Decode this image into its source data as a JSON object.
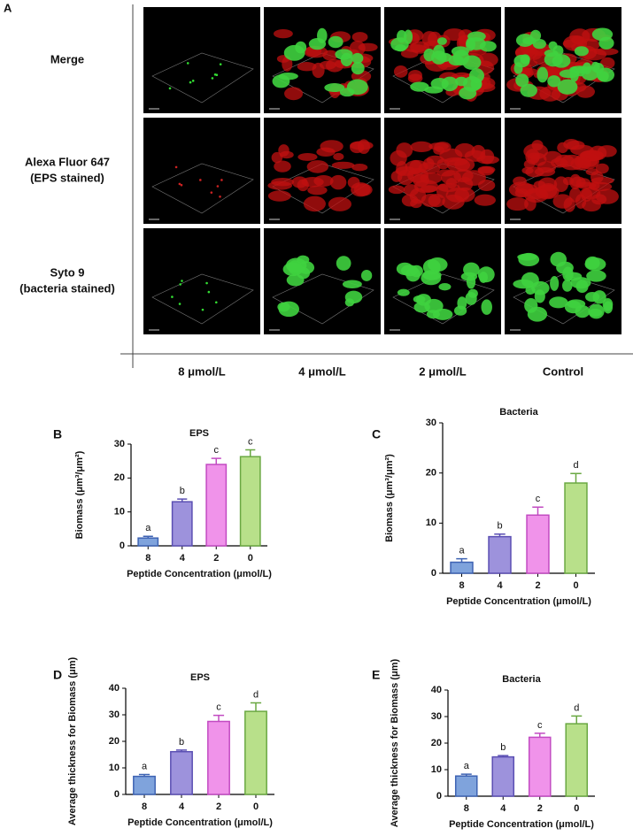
{
  "panel_a": {
    "label": "A",
    "rows": [
      [
        "Merge"
      ],
      [
        "Alexa Fluor 647",
        "(EPS stained)"
      ],
      [
        "Syto 9",
        "(bacteria stained)"
      ]
    ],
    "columns": [
      "8 μmol/L",
      "4 μmol/L",
      "2 μmol/L",
      "Control"
    ]
  },
  "chart_data": [
    {
      "type": "bar",
      "panel": "B",
      "title": "EPS",
      "ylabel": "Biomass (μm³/μm²)",
      "xlabel": "Peptide Concentration (μmol/L)",
      "categories": [
        "8",
        "4",
        "2",
        "0"
      ],
      "values": [
        2.3,
        13,
        24,
        26.3
      ],
      "errors": [
        0.5,
        0.8,
        1.8,
        2.0
      ],
      "annotations": [
        "a",
        "b",
        "c",
        "c"
      ],
      "colors": [
        "#7fa3dc",
        "#9d92dc",
        "#f093ea",
        "#b8e08a"
      ],
      "edge_colors": [
        "#3e63b3",
        "#5b4fb3",
        "#c24bc2",
        "#6aa842"
      ],
      "ylim": [
        0,
        30
      ],
      "yticks": [
        0,
        10,
        20,
        30
      ]
    },
    {
      "type": "bar",
      "panel": "C",
      "title": "Bacteria",
      "ylabel": "Biomass (μm³/μm²)",
      "xlabel": "Peptide Concentration (μmol/L)",
      "categories": [
        "8",
        "4",
        "2",
        "0"
      ],
      "values": [
        2.2,
        7.3,
        11.6,
        18
      ],
      "errors": [
        0.7,
        0.5,
        1.6,
        1.9
      ],
      "annotations": [
        "a",
        "b",
        "c",
        "d"
      ],
      "colors": [
        "#7fa3dc",
        "#9d92dc",
        "#f093ea",
        "#b8e08a"
      ],
      "edge_colors": [
        "#3e63b3",
        "#5b4fb3",
        "#c24bc2",
        "#6aa842"
      ],
      "ylim": [
        0,
        30
      ],
      "yticks": [
        0,
        10,
        20,
        30
      ]
    },
    {
      "type": "bar",
      "panel": "D",
      "title": "EPS",
      "ylabel": "Average thickness for Biomass (μm)",
      "xlabel": "Peptide Concentration (μmol/L)",
      "categories": [
        "8",
        "4",
        "2",
        "0"
      ],
      "values": [
        6.8,
        16.1,
        27.5,
        31.3
      ],
      "errors": [
        0.7,
        0.6,
        2.3,
        3.2
      ],
      "annotations": [
        "a",
        "b",
        "c",
        "d"
      ],
      "colors": [
        "#7fa3dc",
        "#9d92dc",
        "#f093ea",
        "#b8e08a"
      ],
      "edge_colors": [
        "#3e63b3",
        "#5b4fb3",
        "#c24bc2",
        "#6aa842"
      ],
      "ylim": [
        0,
        40
      ],
      "yticks": [
        0,
        10,
        20,
        30,
        40
      ]
    },
    {
      "type": "bar",
      "panel": "E",
      "title": "Bacteria",
      "ylabel": "Average thickness for Biomass (μm)",
      "xlabel": "Peptide Concentration (μmol/L)",
      "categories": [
        "8",
        "4",
        "2",
        "0"
      ],
      "values": [
        7.6,
        14.8,
        22.2,
        27.3
      ],
      "errors": [
        0.7,
        0.5,
        1.5,
        2.9
      ],
      "annotations": [
        "a",
        "b",
        "c",
        "d"
      ],
      "colors": [
        "#7fa3dc",
        "#9d92dc",
        "#f093ea",
        "#b8e08a"
      ],
      "edge_colors": [
        "#3e63b3",
        "#5b4fb3",
        "#c24bc2",
        "#6aa842"
      ],
      "ylim": [
        0,
        40
      ],
      "yticks": [
        0,
        10,
        20,
        30,
        40
      ]
    }
  ]
}
